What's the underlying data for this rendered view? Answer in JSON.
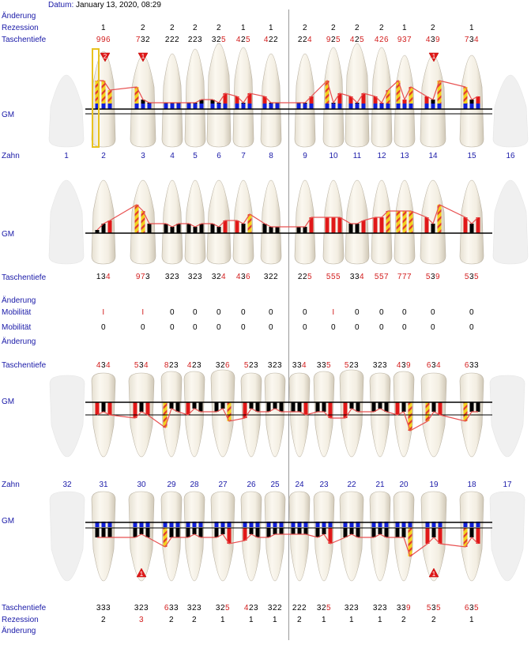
{
  "date": {
    "label": "Datum:",
    "value": "January 13, 2020, 08:29"
  },
  "labels": {
    "aenderung": "Änderung",
    "rezession": "Rezession",
    "taschentiefe": "Taschentiefe",
    "gm": "GM",
    "zahn": "Zahn",
    "mobilitaet": "Mobilität"
  },
  "upper_teeth": [
    "1",
    "2",
    "3",
    "4",
    "5",
    "6",
    "7",
    "8",
    "9",
    "10",
    "11",
    "12",
    "13",
    "14",
    "15",
    "16"
  ],
  "lower_teeth": [
    "32",
    "31",
    "30",
    "29",
    "28",
    "27",
    "26",
    "25",
    "24",
    "23",
    "22",
    "21",
    "20",
    "19",
    "18",
    "17"
  ],
  "upper_rezession": [
    "",
    "1",
    "2",
    "2",
    "2",
    "2",
    "1",
    "1",
    "2",
    "2",
    "2",
    "2",
    "1",
    "2",
    "1",
    ""
  ],
  "upper_taschentiefe_buccal": [
    [],
    [
      [
        "9",
        "r"
      ],
      [
        "9",
        "r"
      ],
      [
        "6",
        "r"
      ]
    ],
    [
      [
        "7",
        "r"
      ],
      [
        "3",
        "b"
      ],
      [
        "2",
        "b"
      ]
    ],
    [
      [
        "2",
        "b"
      ],
      [
        "2",
        "b"
      ],
      [
        "2",
        "b"
      ]
    ],
    [
      [
        "2",
        "b"
      ],
      [
        "2",
        "b"
      ],
      [
        "3",
        "b"
      ]
    ],
    [
      [
        "3",
        "b"
      ],
      [
        "2",
        "b"
      ],
      [
        "5",
        "r"
      ]
    ],
    [
      [
        "4",
        "r"
      ],
      [
        "2",
        "b"
      ],
      [
        "5",
        "r"
      ]
    ],
    [
      [
        "4",
        "r"
      ],
      [
        "2",
        "b"
      ],
      [
        "2",
        "b"
      ]
    ],
    [
      [
        "2",
        "b"
      ],
      [
        "2",
        "b"
      ],
      [
        "4",
        "r"
      ]
    ],
    [
      [
        "9",
        "r"
      ],
      [
        "2",
        "b"
      ],
      [
        "5",
        "r"
      ]
    ],
    [
      [
        "4",
        "r"
      ],
      [
        "2",
        "b"
      ],
      [
        "5",
        "r"
      ]
    ],
    [
      [
        "4",
        "r"
      ],
      [
        "2",
        "r"
      ],
      [
        "6",
        "r"
      ]
    ],
    [
      [
        "9",
        "r"
      ],
      [
        "3",
        "r"
      ],
      [
        "7",
        "r"
      ]
    ],
    [
      [
        "4",
        "r"
      ],
      [
        "3",
        "b"
      ],
      [
        "9",
        "r"
      ]
    ],
    [
      [
        "7",
        "r"
      ],
      [
        "3",
        "b"
      ],
      [
        "4",
        "r"
      ]
    ],
    []
  ],
  "upper_taschentiefe_palatal": [
    [],
    [
      [
        "1",
        "b"
      ],
      [
        "3",
        "b"
      ],
      [
        "4",
        "r"
      ]
    ],
    [
      [
        "9",
        "r"
      ],
      [
        "7",
        "r"
      ],
      [
        "3",
        "b"
      ]
    ],
    [
      [
        "3",
        "b"
      ],
      [
        "2",
        "b"
      ],
      [
        "3",
        "b"
      ]
    ],
    [
      [
        "3",
        "b"
      ],
      [
        "2",
        "b"
      ],
      [
        "3",
        "b"
      ]
    ],
    [
      [
        "3",
        "b"
      ],
      [
        "2",
        "b"
      ],
      [
        "4",
        "r"
      ]
    ],
    [
      [
        "4",
        "r"
      ],
      [
        "3",
        "b"
      ],
      [
        "6",
        "r"
      ]
    ],
    [
      [
        "3",
        "b"
      ],
      [
        "2",
        "b"
      ],
      [
        "2",
        "b"
      ]
    ],
    [
      [
        "2",
        "b"
      ],
      [
        "2",
        "b"
      ],
      [
        "5",
        "r"
      ]
    ],
    [
      [
        "5",
        "r"
      ],
      [
        "5",
        "r"
      ],
      [
        "5",
        "r"
      ]
    ],
    [
      [
        "3",
        "b"
      ],
      [
        "3",
        "b"
      ],
      [
        "4",
        "r"
      ]
    ],
    [
      [
        "5",
        "r"
      ],
      [
        "5",
        "r"
      ],
      [
        "7",
        "r"
      ]
    ],
    [
      [
        "7",
        "r"
      ],
      [
        "7",
        "r"
      ],
      [
        "7",
        "r"
      ]
    ],
    [
      [
        "5",
        "r"
      ],
      [
        "3",
        "b"
      ],
      [
        "9",
        "r"
      ]
    ],
    [
      [
        "5",
        "r"
      ],
      [
        "3",
        "b"
      ],
      [
        "5",
        "r"
      ]
    ],
    []
  ],
  "upper_mobilitaet": [
    "",
    "I",
    "I",
    "0",
    "0",
    "0",
    "0",
    "0",
    "0",
    "I",
    "0",
    "0",
    "0",
    "0",
    "0",
    ""
  ],
  "lower_mobilitaet": [
    "",
    "0",
    "0",
    "0",
    "0",
    "0",
    "0",
    "0",
    "0",
    "0",
    "0",
    "0",
    "0",
    "0",
    "0",
    ""
  ],
  "lower_taschentiefe_lingual": [
    [],
    [
      [
        "4",
        "r"
      ],
      [
        "3",
        "b"
      ],
      [
        "4",
        "r"
      ]
    ],
    [
      [
        "5",
        "r"
      ],
      [
        "3",
        "b"
      ],
      [
        "4",
        "r"
      ]
    ],
    [
      [
        "8",
        "r"
      ],
      [
        "2",
        "b"
      ],
      [
        "3",
        "b"
      ]
    ],
    [
      [
        "4",
        "r"
      ],
      [
        "2",
        "b"
      ],
      [
        "3",
        "b"
      ]
    ],
    [
      [
        "3",
        "b"
      ],
      [
        "2",
        "b"
      ],
      [
        "6",
        "r"
      ]
    ],
    [
      [
        "5",
        "r"
      ],
      [
        "2",
        "b"
      ],
      [
        "3",
        "b"
      ]
    ],
    [
      [
        "3",
        "b"
      ],
      [
        "2",
        "b"
      ],
      [
        "3",
        "b"
      ]
    ],
    [
      [
        "3",
        "b"
      ],
      [
        "3",
        "b"
      ],
      [
        "4",
        "r"
      ]
    ],
    [
      [
        "3",
        "b"
      ],
      [
        "3",
        "b"
      ],
      [
        "5",
        "r"
      ]
    ],
    [
      [
        "5",
        "r"
      ],
      [
        "2",
        "b"
      ],
      [
        "3",
        "b"
      ]
    ],
    [
      [
        "3",
        "b"
      ],
      [
        "2",
        "b"
      ],
      [
        "3",
        "b"
      ]
    ],
    [
      [
        "4",
        "r"
      ],
      [
        "3",
        "b"
      ],
      [
        "9",
        "r"
      ]
    ],
    [
      [
        "6",
        "r"
      ],
      [
        "3",
        "b"
      ],
      [
        "4",
        "r"
      ]
    ],
    [
      [
        "6",
        "r"
      ],
      [
        "3",
        "b"
      ],
      [
        "3",
        "b"
      ]
    ],
    []
  ],
  "lower_taschentiefe_buccal": [
    [],
    [
      [
        "3",
        "b"
      ],
      [
        "3",
        "b"
      ],
      [
        "3",
        "b"
      ]
    ],
    [
      [
        "3",
        "b"
      ],
      [
        "2",
        "b"
      ],
      [
        "3",
        "b"
      ]
    ],
    [
      [
        "6",
        "r"
      ],
      [
        "3",
        "b"
      ],
      [
        "3",
        "b"
      ]
    ],
    [
      [
        "3",
        "b"
      ],
      [
        "2",
        "b"
      ],
      [
        "3",
        "b"
      ]
    ],
    [
      [
        "3",
        "b"
      ],
      [
        "2",
        "b"
      ],
      [
        "5",
        "r"
      ]
    ],
    [
      [
        "4",
        "r"
      ],
      [
        "2",
        "b"
      ],
      [
        "3",
        "b"
      ]
    ],
    [
      [
        "3",
        "b"
      ],
      [
        "2",
        "b"
      ],
      [
        "2",
        "b"
      ]
    ],
    [
      [
        "2",
        "b"
      ],
      [
        "2",
        "b"
      ],
      [
        "2",
        "b"
      ]
    ],
    [
      [
        "3",
        "b"
      ],
      [
        "2",
        "b"
      ],
      [
        "5",
        "r"
      ]
    ],
    [
      [
        "3",
        "b"
      ],
      [
        "2",
        "b"
      ],
      [
        "3",
        "b"
      ]
    ],
    [
      [
        "3",
        "b"
      ],
      [
        "2",
        "b"
      ],
      [
        "3",
        "b"
      ]
    ],
    [
      [
        "3",
        "b"
      ],
      [
        "3",
        "b"
      ],
      [
        "9",
        "r"
      ]
    ],
    [
      [
        "5",
        "r"
      ],
      [
        "3",
        "b"
      ],
      [
        "5",
        "r"
      ]
    ],
    [
      [
        "6",
        "r"
      ],
      [
        "3",
        "b"
      ],
      [
        "5",
        "r"
      ]
    ],
    []
  ],
  "lower_rezession": [
    [
      "",
      "b"
    ],
    [
      "2",
      "b"
    ],
    [
      "3",
      "r"
    ],
    [
      "2",
      "b"
    ],
    [
      "2",
      "b"
    ],
    [
      "1",
      "b"
    ],
    [
      "1",
      "b"
    ],
    [
      "1",
      "b"
    ],
    [
      "2",
      "b"
    ],
    [
      "1",
      "b"
    ],
    [
      "1",
      "b"
    ],
    [
      "1",
      "b"
    ],
    [
      "2",
      "b"
    ],
    [
      "2",
      "b"
    ],
    [
      "1",
      "b"
    ],
    [
      "",
      "b"
    ]
  ],
  "markers": {
    "upper_2": "2",
    "upper_3": "1",
    "upper_14": "1",
    "lower_30": "1",
    "lower_19": "1"
  },
  "colors": {
    "label_blue": "#1a1aa8",
    "value_red": "#d21e1e",
    "pocket_red": "#e01818",
    "hatch_yellow": "#f2d21e",
    "gm_blue": "#1020d8",
    "gm_line": "#000000",
    "recession_line": "#e85050"
  }
}
